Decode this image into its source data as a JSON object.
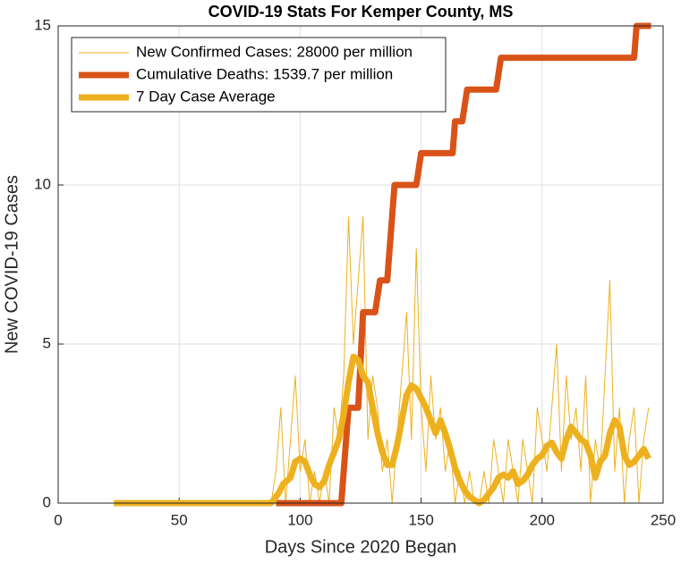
{
  "chart_data": {
    "type": "line",
    "title": "COVID-19 Stats For Kemper County, MS",
    "xlabel": "Days Since 2020 Began",
    "ylabel": "New COVID-19 Cases",
    "xlim": [
      0,
      250
    ],
    "xticks": [
      0,
      50,
      100,
      150,
      200,
      250
    ],
    "ylim": [
      0,
      15
    ],
    "yticks": [
      0,
      5,
      10,
      15
    ],
    "grid": true,
    "legend": "upper left",
    "series": [
      {
        "name": "New Confirmed Cases: 28000 per million",
        "color": "#edb120",
        "line_width": 1,
        "x": [
          23,
          88,
          90,
          92,
          94,
          96,
          98,
          100,
          102,
          104,
          106,
          108,
          110,
          112,
          114,
          116,
          118,
          120,
          122,
          124,
          126,
          128,
          130,
          132,
          134,
          136,
          138,
          140,
          142,
          144,
          146,
          148,
          150,
          152,
          154,
          156,
          158,
          160,
          162,
          164,
          166,
          168,
          170,
          172,
          174,
          176,
          178,
          180,
          182,
          184,
          186,
          188,
          190,
          192,
          194,
          196,
          198,
          200,
          202,
          204,
          206,
          208,
          210,
          212,
          214,
          216,
          218,
          220,
          222,
          224,
          226,
          228,
          230,
          232,
          234,
          236,
          238,
          240,
          242,
          244
        ],
        "values": [
          0,
          0,
          1,
          3,
          0,
          2,
          4,
          1,
          2,
          0,
          1,
          0,
          1,
          0,
          3,
          2,
          4,
          9,
          5,
          7,
          9,
          2,
          4,
          3,
          1,
          2,
          0,
          2,
          4,
          6,
          2,
          8,
          3,
          1,
          4,
          2,
          3,
          1,
          2,
          0,
          1,
          0,
          1,
          0,
          0,
          1,
          0,
          2,
          1,
          0,
          2,
          1,
          0,
          2,
          1,
          0,
          3,
          2,
          1,
          3,
          5,
          1,
          4,
          2,
          3,
          1,
          4,
          0,
          2,
          1,
          4,
          7,
          1,
          3,
          0,
          2,
          3,
          0,
          2,
          3
        ]
      },
      {
        "name": "Cumulative Deaths: 1539.7 per million",
        "color": "#d95319",
        "line_width": 7,
        "x": [
          90,
          117,
          120,
          124,
          126,
          131,
          133,
          136,
          139,
          148,
          150,
          163,
          164,
          167,
          169,
          181,
          183,
          238,
          239,
          245
        ],
        "values": [
          0,
          0,
          3,
          3,
          6,
          6,
          7,
          7,
          10,
          10,
          11,
          11,
          12,
          12,
          13,
          13,
          14,
          14,
          15,
          15
        ]
      },
      {
        "name": "7 Day Case Average",
        "color": "#edb120",
        "line_width": 7,
        "x": [
          23,
          88,
          91,
          93,
          96,
          98,
          100,
          102,
          104,
          106,
          108,
          110,
          112,
          114,
          116,
          118,
          120,
          122,
          124,
          126,
          128,
          130,
          132,
          134,
          136,
          138,
          140,
          142,
          144,
          146,
          148,
          150,
          152,
          154,
          156,
          158,
          160,
          162,
          164,
          166,
          168,
          170,
          172,
          174,
          176,
          178,
          180,
          182,
          184,
          186,
          188,
          190,
          192,
          194,
          196,
          198,
          200,
          202,
          204,
          206,
          208,
          210,
          212,
          214,
          216,
          218,
          220,
          222,
          224,
          226,
          228,
          230,
          232,
          234,
          236,
          238,
          240,
          242,
          244
        ],
        "values": [
          0,
          0,
          0.3,
          0.6,
          0.8,
          1.3,
          1.4,
          1.3,
          0.9,
          0.6,
          0.5,
          0.7,
          1.2,
          1.6,
          2.0,
          2.8,
          3.8,
          4.6,
          4.5,
          4.0,
          3.8,
          3.0,
          2.2,
          1.6,
          1.2,
          1.2,
          1.8,
          2.6,
          3.4,
          3.7,
          3.6,
          3.3,
          3.0,
          2.6,
          2.2,
          2.6,
          2.2,
          1.7,
          1.1,
          0.7,
          0.4,
          0.2,
          0.1,
          0,
          0.1,
          0.3,
          0.5,
          0.8,
          0.9,
          0.8,
          1.0,
          0.6,
          0.7,
          0.9,
          1.2,
          1.4,
          1.5,
          1.8,
          1.9,
          1.6,
          1.4,
          2.0,
          2.4,
          2.2,
          2.0,
          1.9,
          1.5,
          0.8,
          1.3,
          1.5,
          2.2,
          2.6,
          2.4,
          1.5,
          1.2,
          1.3,
          1.5,
          1.7,
          1.4
        ]
      }
    ]
  }
}
